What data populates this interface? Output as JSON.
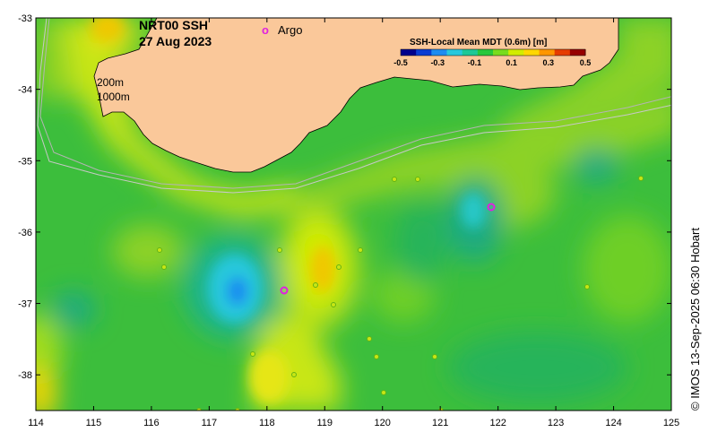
{
  "title": {
    "product": "NRT00 SSH",
    "date": "27 Aug 2023"
  },
  "argo_legend": {
    "symbol": "o",
    "label": "Argo",
    "color": "#e020e0"
  },
  "depth_labels": [
    "200m",
    "1000m"
  ],
  "colorbar": {
    "title": "SSH-Local Mean MDT (0.6m) [m]",
    "tick_labels": [
      "-0.5",
      "-0.3",
      "-0.1",
      "0.1",
      "0.3",
      "0.5"
    ],
    "range": [
      -0.5,
      0.5
    ],
    "colors": [
      "#00008c",
      "#0a3cd2",
      "#1e8cf0",
      "#28c8dc",
      "#1ec896",
      "#28c83c",
      "#78dc1e",
      "#d2ec00",
      "#ffd700",
      "#ff9600",
      "#e63c00",
      "#960000"
    ]
  },
  "axes": {
    "x_ticks": [
      "114",
      "115",
      "116",
      "117",
      "118",
      "119",
      "120",
      "121",
      "122",
      "123",
      "124",
      "125"
    ],
    "y_ticks": [
      "-33",
      "-34",
      "-35",
      "-36",
      "-37",
      "-38"
    ],
    "lon_range": [
      114,
      125
    ],
    "lat_range": [
      -38.5,
      -33
    ]
  },
  "land_color": "#fac89a",
  "credit": "© IMOS 13-Sep-2025 06:30 Hobart"
}
